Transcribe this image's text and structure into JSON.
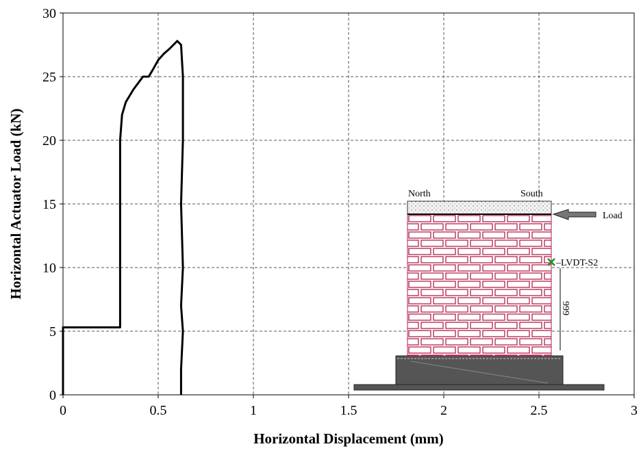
{
  "chart_data": {
    "type": "line",
    "xlabel": "Horizontal Displacement (mm)",
    "ylabel": "Horizontal Actuator Load (kN)",
    "xlim": [
      0,
      3
    ],
    "ylim": [
      0,
      30
    ],
    "xticks": [
      0,
      0.5,
      1,
      1.5,
      2,
      2.5,
      3
    ],
    "yticks": [
      0,
      5,
      10,
      15,
      20,
      25,
      30
    ],
    "grid": true,
    "series": [
      {
        "color": "#000000",
        "x": [
          0,
          0,
          0.3,
          0.3,
          0.31,
          0.33,
          0.37,
          0.42,
          0.45,
          0.47,
          0.5,
          0.53,
          0.56,
          0.6,
          0.62,
          0.63,
          0.63,
          0.62,
          0.63,
          0.62,
          0.63,
          0.62,
          0.62
        ],
        "values": [
          0,
          5.3,
          5.3,
          20,
          22,
          23,
          24,
          25,
          25,
          25.5,
          26.3,
          26.8,
          27.2,
          27.8,
          27.5,
          25,
          20,
          15,
          10,
          7,
          5,
          2,
          0
        ]
      }
    ],
    "annotations": [
      "North",
      "South",
      "Load",
      "–LVDT-S2",
      "999"
    ]
  }
}
